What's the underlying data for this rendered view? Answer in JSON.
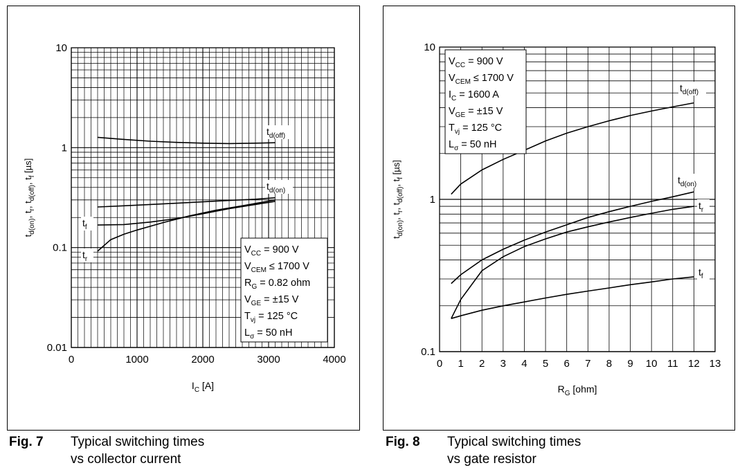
{
  "chart_data": [
    {
      "type": "line",
      "xlabel": "I",
      "xlabel_sub": "C",
      "xlabel_unit": " [A]",
      "ylabel": "t_d(on), t_r, t_d(off), t_f [µs]",
      "yscale": "log",
      "xlim": [
        0,
        4000
      ],
      "ylim": [
        0.01,
        10
      ],
      "x_ticks": [
        "0",
        "1000",
        "2000",
        "3000",
        "4000"
      ],
      "y_ticks": [
        "0.01",
        "0.1",
        "1",
        "10"
      ],
      "grid": true,
      "series": [
        {
          "name": "td(off)",
          "label_main": "t",
          "label_sub": "d(off)",
          "x": [
            400,
            800,
            1200,
            1600,
            2000,
            2400,
            2800,
            3100
          ],
          "y": [
            1.27,
            1.21,
            1.16,
            1.13,
            1.11,
            1.1,
            1.11,
            1.12
          ]
        },
        {
          "name": "td(on)",
          "label_main": "t",
          "label_sub": "d(on)",
          "x": [
            400,
            800,
            1200,
            1600,
            2000,
            2400,
            2800,
            3100
          ],
          "y": [
            0.255,
            0.262,
            0.27,
            0.278,
            0.287,
            0.296,
            0.305,
            0.315
          ]
        },
        {
          "name": "tf",
          "label_main": "t",
          "label_sub": "f",
          "x": [
            400,
            800,
            1200,
            1600,
            2000,
            2400,
            2800,
            3100
          ],
          "y": [
            0.168,
            0.17,
            0.18,
            0.195,
            0.218,
            0.245,
            0.27,
            0.29
          ]
        },
        {
          "name": "tr",
          "label_main": "t",
          "label_sub": "r",
          "x": [
            400,
            600,
            800,
            1000,
            1400,
            1800,
            2200,
            2600,
            3100
          ],
          "y": [
            0.092,
            0.12,
            0.136,
            0.15,
            0.178,
            0.208,
            0.237,
            0.262,
            0.3
          ]
        }
      ],
      "conditions": [
        {
          "main": "V",
          "sub": "CC",
          "rest": " = 900 V"
        },
        {
          "main": "V",
          "sub": "CEM",
          "rest": " ≤ 1700 V"
        },
        {
          "main": "R",
          "sub": "G",
          "rest": " = 0.82 ohm"
        },
        {
          "main": "V",
          "sub": "GE",
          "rest": " = ±15 V"
        },
        {
          "main": "T",
          "sub": "vj",
          "rest": " = 125 °C"
        },
        {
          "main": "L",
          "sub": "σ",
          "rest": " = 50 nH"
        }
      ]
    },
    {
      "type": "line",
      "xlabel": "R",
      "xlabel_sub": "G",
      "xlabel_unit": " [ohm]",
      "ylabel": "t_d(on), t_r, t_d(off), t_f [µs]",
      "yscale": "log",
      "xlim": [
        0,
        13
      ],
      "ylim": [
        0.1,
        10
      ],
      "x_ticks": [
        "0",
        "1",
        "2",
        "3",
        "4",
        "5",
        "6",
        "7",
        "8",
        "9",
        "10",
        "11",
        "12",
        "13"
      ],
      "y_ticks": [
        "0.1",
        "1",
        "10"
      ],
      "grid": true,
      "series": [
        {
          "name": "td(off)",
          "label_main": "t",
          "label_sub": "d(off)",
          "x": [
            0.55,
            1,
            2,
            3,
            4,
            5,
            6,
            7,
            8,
            9,
            10,
            11,
            12
          ],
          "y": [
            1.08,
            1.26,
            1.56,
            1.83,
            2.1,
            2.42,
            2.72,
            3.0,
            3.28,
            3.55,
            3.8,
            4.05,
            4.3
          ]
        },
        {
          "name": "td(on)",
          "label_main": "t",
          "label_sub": "d(on)",
          "x": [
            0.55,
            1,
            2,
            3,
            4,
            5,
            6,
            7,
            8,
            9,
            10,
            11,
            12
          ],
          "y": [
            0.28,
            0.32,
            0.4,
            0.47,
            0.54,
            0.61,
            0.68,
            0.76,
            0.83,
            0.9,
            0.97,
            1.04,
            1.12
          ]
        },
        {
          "name": "tr",
          "label_main": "t",
          "label_sub": "r",
          "x": [
            0.55,
            1,
            2,
            3,
            4,
            5,
            6,
            7,
            8,
            9,
            10,
            11,
            12
          ],
          "y": [
            0.165,
            0.22,
            0.34,
            0.42,
            0.49,
            0.55,
            0.61,
            0.66,
            0.71,
            0.76,
            0.81,
            0.86,
            0.9
          ]
        },
        {
          "name": "tf",
          "label_main": "t",
          "label_sub": "f",
          "x": [
            0.55,
            1,
            2,
            3,
            4,
            5,
            6,
            7,
            8,
            9,
            10,
            11,
            12
          ],
          "y": [
            0.165,
            0.172,
            0.187,
            0.2,
            0.212,
            0.225,
            0.238,
            0.25,
            0.262,
            0.275,
            0.287,
            0.3,
            0.31
          ]
        }
      ],
      "conditions": [
        {
          "main": "V",
          "sub": "CC",
          "rest": " = 900 V"
        },
        {
          "main": "V",
          "sub": "CEM",
          "rest": " ≤ 1700 V"
        },
        {
          "main": "I",
          "sub": "C",
          "rest": " = 1600 A"
        },
        {
          "main": "V",
          "sub": "GE",
          "rest": " = ±15 V"
        },
        {
          "main": "T",
          "sub": "vj",
          "rest": " = 125 °C"
        },
        {
          "main": "L",
          "sub": "σ",
          "rest": " = 50 nH"
        }
      ]
    }
  ],
  "captions": [
    {
      "label": "Fig. 7",
      "line1": "Typical switching times",
      "line2": "vs collector current"
    },
    {
      "label": "Fig. 8",
      "line1": "Typical switching times",
      "line2": "vs  gate resistor"
    }
  ]
}
